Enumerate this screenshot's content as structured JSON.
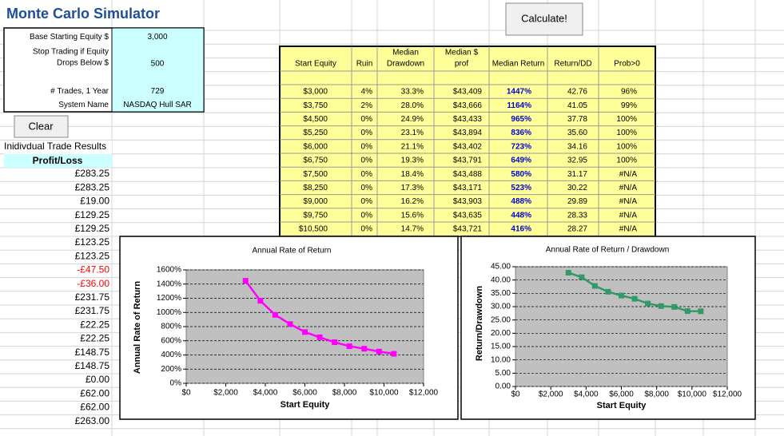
{
  "header": {
    "title": "Monte Carlo Simulator"
  },
  "buttons": {
    "calculate": "Calculate!",
    "clear": "Clear"
  },
  "inputs": [
    {
      "label": [
        "Base Starting Equity $"
      ],
      "value": "3,000"
    },
    {
      "label": [
        "Stop Trading if Equity",
        "Drops Below $"
      ],
      "value": "500"
    },
    {
      "label": [
        "# Trades, 1 Year"
      ],
      "value": "729"
    },
    {
      "label": [
        "System Name"
      ],
      "value": "NASDAQ Hull SAR"
    }
  ],
  "trades": {
    "title": "Inidivdual Trade Results",
    "header": "Profit/Loss",
    "rows": [
      "£283.25",
      "£283.25",
      "£19.00",
      "£129.25",
      "£129.25",
      "£123.25",
      "£123.25",
      "-£47.50",
      "-£36.00",
      "£231.75",
      "£231.75",
      "£22.25",
      "£22.25",
      "£148.75",
      "£148.75",
      "£0.00",
      "£62.00",
      "£62.00",
      "£263.00"
    ]
  },
  "results": {
    "columns": [
      [
        "Start Equity"
      ],
      [
        "Ruin"
      ],
      [
        "Median",
        "Drawdown"
      ],
      [
        "Median $",
        "prof"
      ],
      [
        "Median Return"
      ],
      [
        "Return/DD"
      ],
      [
        "Prob>0"
      ]
    ],
    "rows": [
      [
        "$3,000",
        "4%",
        "33.3%",
        "$43,409",
        "1447%",
        "42.76",
        "96%"
      ],
      [
        "$3,750",
        "2%",
        "28.0%",
        "$43,666",
        "1164%",
        "41.05",
        "99%"
      ],
      [
        "$4,500",
        "0%",
        "24.9%",
        "$43,433",
        "965%",
        "37.78",
        "100%"
      ],
      [
        "$5,250",
        "0%",
        "23.1%",
        "$43,894",
        "836%",
        "35.60",
        "100%"
      ],
      [
        "$6,000",
        "0%",
        "21.1%",
        "$43,402",
        "723%",
        "34.16",
        "100%"
      ],
      [
        "$6,750",
        "0%",
        "19.3%",
        "$43,791",
        "649%",
        "32.95",
        "100%"
      ],
      [
        "$7,500",
        "0%",
        "18.4%",
        "$43,488",
        "580%",
        "31.17",
        "#N/A"
      ],
      [
        "$8,250",
        "0%",
        "17.3%",
        "$43,171",
        "523%",
        "30.22",
        "#N/A"
      ],
      [
        "$9,000",
        "0%",
        "16.2%",
        "$43,903",
        "488%",
        "29.89",
        "#N/A"
      ],
      [
        "$9,750",
        "0%",
        "15.6%",
        "$43,635",
        "448%",
        "28.33",
        "#N/A"
      ],
      [
        "$10,500",
        "0%",
        "14.7%",
        "$43,721",
        "416%",
        "28.27",
        "#N/A"
      ]
    ]
  },
  "chart_data": [
    {
      "type": "line",
      "title": "Annual Rate of Return",
      "x_label": "Start Equity",
      "y_label": "Annual Rate of Return",
      "x": [
        3000,
        3750,
        4500,
        5250,
        6000,
        6750,
        7500,
        8250,
        9000,
        9750,
        10500
      ],
      "values": [
        1447,
        1164,
        965,
        836,
        723,
        649,
        580,
        523,
        488,
        448,
        416
      ],
      "color": "#ff00ff",
      "xlim": [
        0,
        12000
      ],
      "xticks": [
        {
          "value": 0,
          "label": "$0"
        },
        {
          "value": 2000,
          "label": "$2,000"
        },
        {
          "value": 4000,
          "label": "$4,000"
        },
        {
          "value": 6000,
          "label": "$6,000"
        },
        {
          "value": 8000,
          "label": "$8,000"
        },
        {
          "value": 10000,
          "label": "$10,000"
        },
        {
          "value": 12000,
          "label": "$12,000"
        }
      ],
      "ylim": [
        0,
        1600
      ],
      "yticks": [
        {
          "value": 0,
          "label": "0%"
        },
        {
          "value": 200,
          "label": "200%"
        },
        {
          "value": 400,
          "label": "400%"
        },
        {
          "value": 600,
          "label": "600%"
        },
        {
          "value": 800,
          "label": "800%"
        },
        {
          "value": 1000,
          "label": "1000%"
        },
        {
          "value": 1200,
          "label": "1200%"
        },
        {
          "value": 1400,
          "label": "1400%"
        },
        {
          "value": 1600,
          "label": "1600%"
        }
      ],
      "grid": true
    },
    {
      "type": "line",
      "title": "Annual Rate of Return / Drawdown",
      "x_label": "Start Equity",
      "y_label": "Return/Drawdown",
      "x": [
        3000,
        3750,
        4500,
        5250,
        6000,
        6750,
        7500,
        8250,
        9000,
        9750,
        10500
      ],
      "values": [
        42.76,
        41.05,
        37.78,
        35.6,
        34.16,
        32.95,
        31.17,
        30.22,
        29.89,
        28.33,
        28.27
      ],
      "color": "#339966",
      "xlim": [
        0,
        12000
      ],
      "xticks": [
        {
          "value": 0,
          "label": "$0"
        },
        {
          "value": 2000,
          "label": "$2,000"
        },
        {
          "value": 4000,
          "label": "$4,000"
        },
        {
          "value": 6000,
          "label": "$6,000"
        },
        {
          "value": 8000,
          "label": "$8,000"
        },
        {
          "value": 10000,
          "label": "$10,000"
        },
        {
          "value": 12000,
          "label": "$12,000"
        }
      ],
      "ylim": [
        0,
        45
      ],
      "yticks": [
        {
          "value": 0,
          "label": "0.00"
        },
        {
          "value": 5,
          "label": "5.00"
        },
        {
          "value": 10,
          "label": "10.00"
        },
        {
          "value": 15,
          "label": "15.00"
        },
        {
          "value": 20,
          "label": "20.00"
        },
        {
          "value": 25,
          "label": "25.00"
        },
        {
          "value": 30,
          "label": "30.00"
        },
        {
          "value": 35,
          "label": "35.00"
        },
        {
          "value": 40,
          "label": "40.00"
        },
        {
          "value": 45,
          "label": "45.00"
        }
      ],
      "grid": true
    }
  ]
}
